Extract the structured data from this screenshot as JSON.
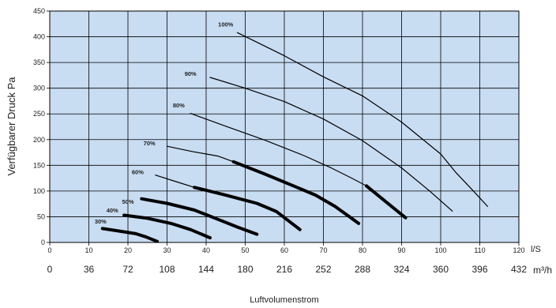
{
  "chart_data": {
    "type": "line",
    "title": "",
    "xlabel": "Luftvolumenstrom",
    "ylabel": "Verfügbarer Druck Pa",
    "xlim": [
      0,
      120
    ],
    "ylim": [
      0,
      450
    ],
    "grid": true,
    "plot_background": "#c8dcf2",
    "line_color": "#000000",
    "x_ticks": [
      0,
      10,
      20,
      30,
      40,
      50,
      60,
      70,
      80,
      90,
      100,
      110,
      120
    ],
    "x_unit": "l/S",
    "x_ticks_secondary": [
      "0",
      "36",
      "72",
      "108",
      "144",
      "180",
      "216",
      "252",
      "288",
      "324",
      "360",
      "396",
      "432"
    ],
    "x_unit_secondary": "m³/h",
    "y_ticks": [
      0,
      50,
      100,
      150,
      200,
      250,
      300,
      350,
      400,
      450
    ],
    "series": [
      {
        "name": "30%",
        "label_at": [
          13,
          37
        ],
        "thin": [],
        "thick": [
          [
            13.5,
            27
          ],
          [
            17,
            23
          ],
          [
            22,
            17
          ],
          [
            24.5,
            11
          ],
          [
            27.5,
            2
          ]
        ]
      },
      {
        "name": "40%",
        "label_at": [
          16,
          58
        ],
        "thin": [],
        "thick": [
          [
            19,
            53
          ],
          [
            25,
            47
          ],
          [
            31,
            37
          ],
          [
            36,
            25
          ],
          [
            41,
            9
          ]
        ]
      },
      {
        "name": "50%",
        "label_at": [
          20,
          75
        ],
        "thin": [],
        "thick": [
          [
            23.5,
            85
          ],
          [
            30,
            76
          ],
          [
            37,
            63
          ],
          [
            43,
            45
          ],
          [
            48,
            30
          ],
          [
            53,
            16
          ]
        ]
      },
      {
        "name": "60%",
        "label_at": [
          22.5,
          133
        ],
        "thin": [
          [
            27,
            131
          ],
          [
            32,
            119
          ],
          [
            37,
            107
          ]
        ],
        "thick": [
          [
            37,
            107
          ],
          [
            45,
            92
          ],
          [
            53,
            76
          ],
          [
            58,
            60
          ],
          [
            64,
            25
          ]
        ]
      },
      {
        "name": "70%",
        "label_at": [
          25.5,
          189
        ],
        "thin": [
          [
            30,
            187
          ],
          [
            37,
            176
          ],
          [
            43,
            168
          ],
          [
            47,
            157
          ]
        ],
        "thick": [
          [
            47,
            157
          ],
          [
            55,
            133
          ],
          [
            62,
            111
          ],
          [
            68,
            92
          ],
          [
            73,
            70
          ],
          [
            79,
            37
          ]
        ]
      },
      {
        "name": "80%",
        "label_at": [
          33,
          263
        ],
        "thin": [
          [
            36,
            251
          ],
          [
            45,
            226
          ],
          [
            55,
            199
          ],
          [
            65,
            169
          ],
          [
            72,
            145
          ],
          [
            77,
            126
          ],
          [
            81,
            110
          ]
        ],
        "thick": [
          [
            81,
            110
          ],
          [
            86,
            79
          ],
          [
            91,
            48
          ]
        ]
      },
      {
        "name": "90%",
        "label_at": [
          36,
          324
        ],
        "thin": [
          [
            41,
            321
          ],
          [
            50,
            300
          ],
          [
            60,
            274
          ],
          [
            70,
            240
          ],
          [
            80,
            198
          ],
          [
            90,
            145
          ],
          [
            97,
            101
          ],
          [
            103,
            61
          ]
        ],
        "thick": []
      },
      {
        "name": "100%",
        "label_at": [
          45,
          420
        ],
        "thin": [
          [
            48,
            408
          ],
          [
            60,
            363
          ],
          [
            70,
            322
          ],
          [
            80,
            285
          ],
          [
            90,
            234
          ],
          [
            100,
            172
          ],
          [
            104,
            135
          ],
          [
            108,
            103
          ],
          [
            112,
            70
          ]
        ],
        "thick": []
      }
    ]
  }
}
